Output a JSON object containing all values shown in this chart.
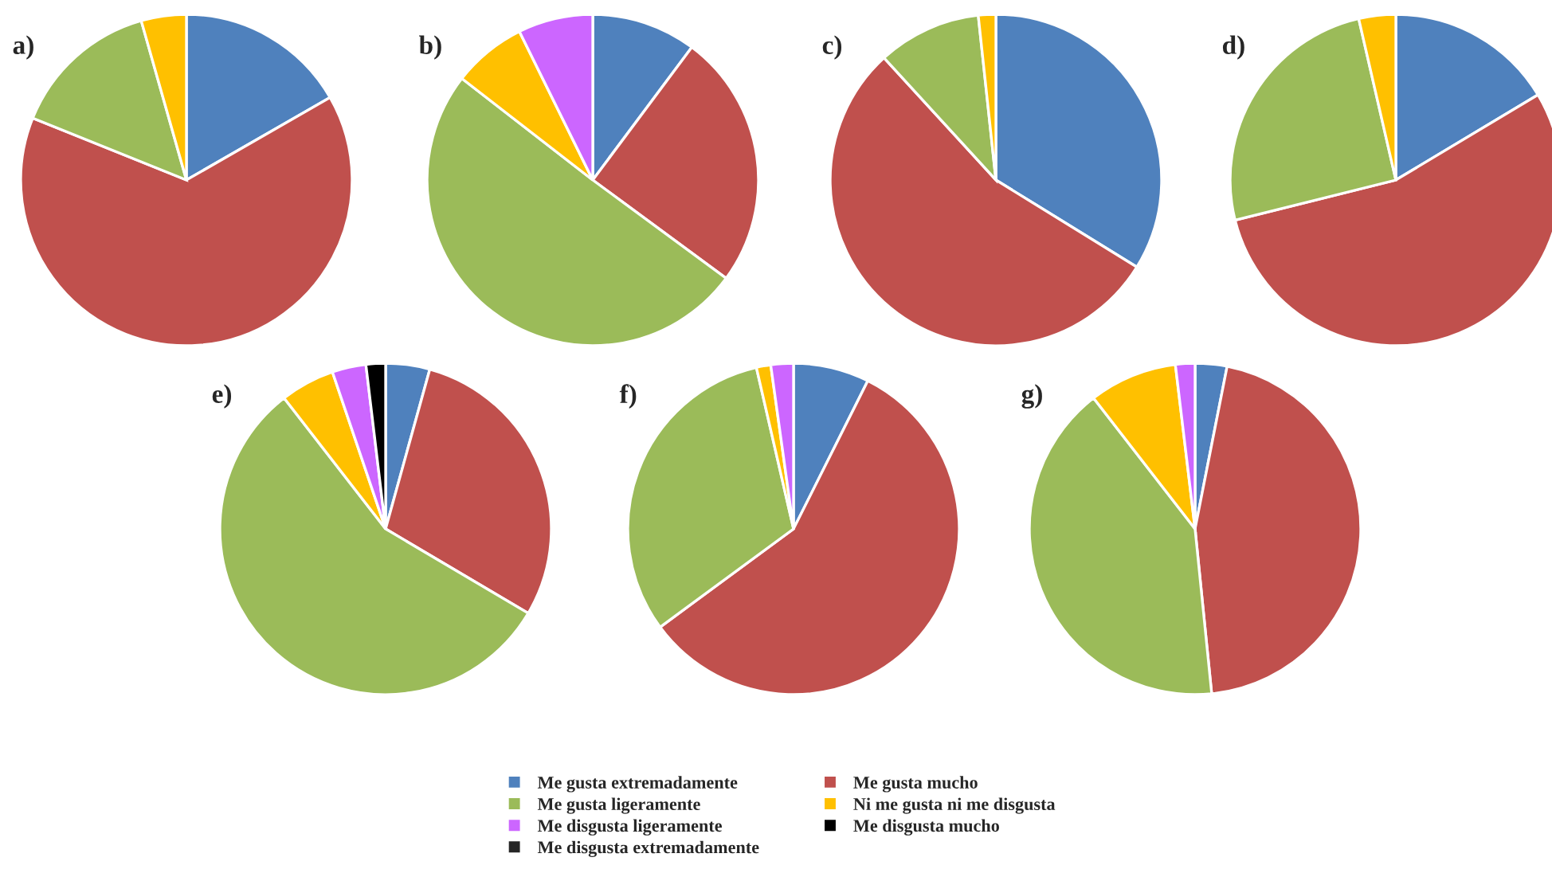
{
  "chart_data": [
    {
      "type": "pie",
      "title": "a)",
      "categories": [
        "Me gusta extremadamente",
        "Me gusta mucho",
        "Me gusta ligeramente",
        "Ni me gusta ni me disgusta",
        "Me disgusta ligeramente",
        "Me disgusta mucho",
        "Me disgusta extremadamente"
      ],
      "values": [
        16.7,
        64.4,
        14.5,
        4.4,
        null,
        null,
        null
      ],
      "colors": [
        "#4f81bd",
        "#c0504d",
        "#9bbb59",
        "#ffc000",
        "#cc66ff",
        "#000000",
        "#262626"
      ],
      "legend": "bottom"
    },
    {
      "type": "pie",
      "title": "b)",
      "categories": [
        null,
        null,
        null,
        null,
        null,
        null,
        null
      ],
      "values": [
        10.2,
        24.9,
        50.4,
        7.2,
        7.3,
        null,
        null
      ],
      "colors": [
        "#4f81bd",
        "#c0504d",
        "#9bbb59",
        "#ffc000",
        "#cc66ff",
        "#000000",
        "#262626"
      ]
    },
    {
      "type": "pie",
      "title": "c)",
      "categories": [
        null,
        null,
        null,
        null,
        null,
        null,
        null
      ],
      "values": [
        33.8,
        54.4,
        10.1,
        1.7,
        null,
        null,
        null
      ],
      "colors": [
        "#4f81bd",
        "#c0504d",
        "#9bbb59",
        "#ffc000",
        "#cc66ff",
        "#000000",
        "#262626"
      ]
    },
    {
      "type": "pie",
      "title": "d)",
      "categories": [
        null,
        null,
        null,
        null,
        null,
        null,
        null
      ],
      "values": [
        16.4,
        54.7,
        25.3,
        3.6,
        null,
        null,
        null
      ],
      "colors": [
        "#4f81bd",
        "#c0504d",
        "#9bbb59",
        "#ffc000",
        "#cc66ff",
        "#000000",
        "#262626"
      ]
    },
    {
      "type": "pie",
      "title": "e)",
      "categories": [
        null,
        null,
        null,
        null,
        null,
        null,
        null
      ],
      "values": [
        4.3,
        29.2,
        56.0,
        5.3,
        3.3,
        1.9,
        null
      ],
      "colors": [
        "#4f81bd",
        "#c0504d",
        "#9bbb59",
        "#ffc000",
        "#cc66ff",
        "#000000",
        "#262626"
      ]
    },
    {
      "type": "pie",
      "title": "f)",
      "categories": [
        null,
        null,
        null,
        null,
        null,
        null,
        null
      ],
      "values": [
        7.4,
        57.5,
        31.5,
        1.4,
        2.2,
        null,
        null
      ],
      "colors": [
        "#4f81bd",
        "#c0504d",
        "#9bbb59",
        "#ffc000",
        "#cc66ff",
        "#000000",
        "#262626"
      ]
    },
    {
      "type": "pie",
      "title": "g)",
      "categories": [
        null,
        null,
        null,
        null,
        null,
        null,
        null
      ],
      "values": [
        3.1,
        45.3,
        41.1,
        8.6,
        1.9,
        null,
        null
      ],
      "colors": [
        "#4f81bd",
        "#c0504d",
        "#9bbb59",
        "#ffc000",
        "#cc66ff",
        "#000000",
        "#262626"
      ]
    }
  ]
}
